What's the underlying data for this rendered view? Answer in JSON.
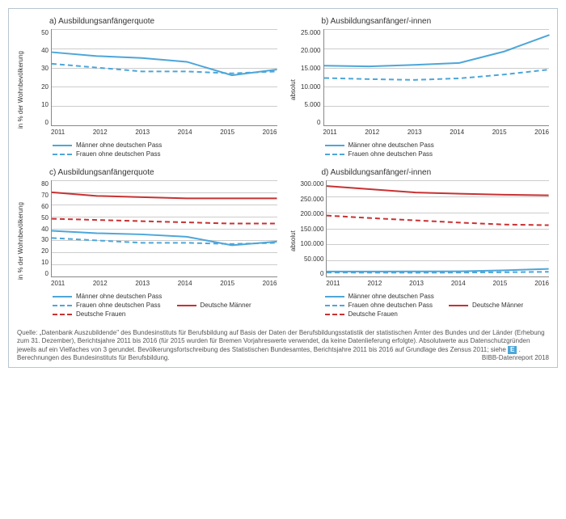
{
  "years": [
    "2011",
    "2012",
    "2013",
    "2014",
    "2015",
    "2016"
  ],
  "colors": {
    "blue": "#4da6d9",
    "red": "#c83232",
    "grid": "#cccccc",
    "axis": "#888888",
    "bg": "#ffffff"
  },
  "charts": {
    "a": {
      "title": "a) Ausbildungsanfängerquote",
      "ylabel": "in % der Wohnbevölkerung",
      "ymin": 0,
      "ymax": 50,
      "yticks": [
        0,
        10,
        20,
        30,
        40,
        50
      ],
      "series": [
        {
          "key": "m_nd",
          "label": "Männer ohne deutschen Pass",
          "color": "#4da6d9",
          "dash": "solid",
          "values": [
            38,
            36,
            35,
            33,
            26,
            29
          ]
        },
        {
          "key": "f_nd",
          "label": "Frauen ohne deutschen Pass",
          "color": "#4da6d9",
          "dash": "dashed",
          "values": [
            32,
            30,
            28,
            28,
            27,
            28
          ]
        }
      ]
    },
    "b": {
      "title": "b) Ausbildungsanfänger/-innen",
      "ylabel": "absolut",
      "ymin": 0,
      "ymax": 25000,
      "yticks": [
        0,
        5000,
        10000,
        15000,
        20000,
        25000
      ],
      "ytick_labels": [
        "0",
        "5.000",
        "10.000",
        "15.000",
        "20.000",
        "25.000"
      ],
      "series": [
        {
          "key": "m_nd",
          "label": "Männer ohne deutschen Pass",
          "color": "#4da6d9",
          "dash": "solid",
          "values": [
            15500,
            15300,
            15700,
            16200,
            19200,
            23500
          ]
        },
        {
          "key": "f_nd",
          "label": "Frauen ohne deutschen Pass",
          "color": "#4da6d9",
          "dash": "dashed",
          "values": [
            12300,
            12000,
            11800,
            12200,
            13200,
            14500
          ]
        }
      ]
    },
    "c": {
      "title": "c) Ausbildungsanfängerquote",
      "ylabel": "in % der Wohnbevölkerung",
      "ymin": 0,
      "ymax": 80,
      "yticks": [
        0,
        10,
        20,
        30,
        40,
        50,
        60,
        70,
        80
      ],
      "series": [
        {
          "key": "m_nd",
          "label": "Männer ohne deutschen Pass",
          "color": "#4da6d9",
          "dash": "solid",
          "values": [
            38,
            36,
            35,
            33,
            26,
            29
          ]
        },
        {
          "key": "f_nd",
          "label": "Frauen ohne deutschen Pass",
          "color": "#4da6d9",
          "dash": "dashed",
          "values": [
            32,
            30,
            28,
            28,
            27,
            28
          ]
        },
        {
          "key": "m_de",
          "label": "Deutsche Männer",
          "color": "#c83232",
          "dash": "solid",
          "values": [
            70,
            67,
            66,
            65,
            65,
            65
          ]
        },
        {
          "key": "f_de",
          "label": "Deutsche Frauen",
          "color": "#c83232",
          "dash": "dashed",
          "values": [
            48,
            47,
            46,
            45,
            44,
            44
          ]
        }
      ]
    },
    "d": {
      "title": "d) Ausbildungsanfänger/-innen",
      "ylabel": "absolut",
      "ymin": 0,
      "ymax": 300000,
      "yticks": [
        0,
        50000,
        100000,
        150000,
        200000,
        250000,
        300000
      ],
      "ytick_labels": [
        "0",
        "50.000",
        "100.000",
        "150.000",
        "200.000",
        "250.000",
        "300.000"
      ],
      "series": [
        {
          "key": "m_nd",
          "label": "Männer ohne deutschen Pass",
          "color": "#4da6d9",
          "dash": "solid",
          "values": [
            15500,
            15300,
            15700,
            16200,
            19200,
            23500
          ]
        },
        {
          "key": "f_nd",
          "label": "Frauen ohne deutschen Pass",
          "color": "#4da6d9",
          "dash": "dashed",
          "values": [
            12300,
            12000,
            11800,
            12200,
            13200,
            14500
          ]
        },
        {
          "key": "m_de",
          "label": "Deutsche Männer",
          "color": "#c83232",
          "dash": "solid",
          "values": [
            282000,
            272000,
            262000,
            258000,
            255000,
            253000
          ]
        },
        {
          "key": "f_de",
          "label": "Deutsche Frauen",
          "color": "#c83232",
          "dash": "dashed",
          "values": [
            190000,
            182000,
            175000,
            168000,
            162000,
            160000
          ]
        }
      ]
    }
  },
  "legends": {
    "ab": [
      {
        "label": "Männer ohne deutschen Pass",
        "color": "#4da6d9",
        "dash": "solid"
      },
      {
        "label": "Frauen ohne deutschen Pass",
        "color": "#4da6d9",
        "dash": "dashed"
      }
    ],
    "cd": [
      {
        "label": "Männer ohne deutschen Pass",
        "color": "#4da6d9",
        "dash": "solid"
      },
      {
        "label": "Frauen ohne deutschen Pass",
        "color": "#4da6d9",
        "dash": "dashed"
      },
      {
        "label": "Deutsche Männer",
        "color": "#c83232",
        "dash": "solid"
      },
      {
        "label": "Deutsche Frauen",
        "color": "#c83232",
        "dash": "dashed"
      }
    ]
  },
  "footer": {
    "text1": "Quelle: „Datenbank Auszubildende\" des Bundesinstituts für Berufsbildung auf Basis der Daten der Berufsbildungsstatistik der statistischen Ämter des Bundes und der Länder (Erhebung zum 31. Dezember), Berichtsjahre 2011 bis 2016 (für 2015 wurden für Bremen Vorjahreswerte verwendet, da keine Datenlieferung erfolgte). Absolutwerte aus Datenschutzgründen jeweils auf ein Vielfaches von 3 gerundet. Bevölkerungsfortschreibung des Statistischen Bundesamtes, Berichtsjahre 2011 bis 2016 auf Grundlage des Zensus 2011; siehe ",
    "badge": "E",
    "text2": " . Berechnungen des Bundesinstituts für Berufsbildung.",
    "source": "BIBB-Datenreport 2018"
  },
  "style": {
    "line_width": 2,
    "font_size_title": 10,
    "font_size_axis": 8,
    "font_size_legend": 8,
    "font_size_footer": 8
  }
}
